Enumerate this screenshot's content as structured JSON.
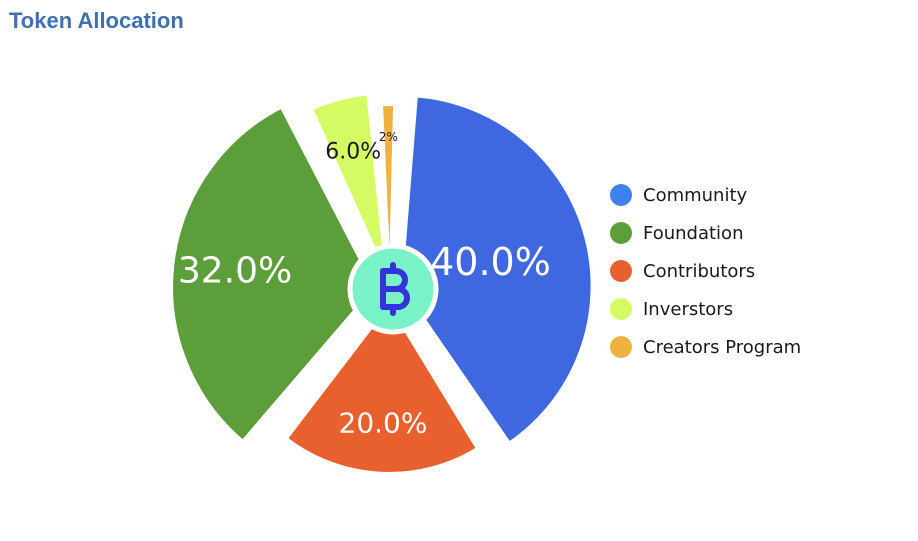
{
  "title": "Token Allocation",
  "center_icon": "bitcoin-style-b-icon",
  "colors": {
    "center_fill": "#79f2c8",
    "center_stroke": "#ffffff",
    "center_icon": "#3333dd"
  },
  "chart_data": {
    "type": "pie",
    "title": "Token Allocation",
    "legend_position": "right",
    "slices": [
      {
        "name": "Community",
        "value": 40.0,
        "label": "40.0%",
        "color": "#3f67e0",
        "label_color": "#ffffff"
      },
      {
        "name": "Contributors",
        "value": 20.0,
        "label": "20.0%",
        "color": "#e8602d",
        "label_color": "#ffffff"
      },
      {
        "name": "Foundation",
        "value": 32.0,
        "label": "32.0%",
        "color": "#5b9e3a",
        "label_color": "#ffffff"
      },
      {
        "name": "Inverstors",
        "value": 6.0,
        "label": "6.0%",
        "color": "#d4fb63",
        "label_color": "#1a1a1a"
      },
      {
        "name": "Creators Program",
        "value": 2.0,
        "label": "2%",
        "color": "#efb241",
        "label_color": "#1a1a1a"
      }
    ],
    "legend": [
      {
        "name": "Community",
        "color": "#3f82ee"
      },
      {
        "name": "Foundation",
        "color": "#5b9e3a"
      },
      {
        "name": "Contributors",
        "color": "#e8602d"
      },
      {
        "name": "Inverstors",
        "color": "#d4fb63"
      },
      {
        "name": "Creators Program",
        "color": "#efb241"
      }
    ]
  }
}
